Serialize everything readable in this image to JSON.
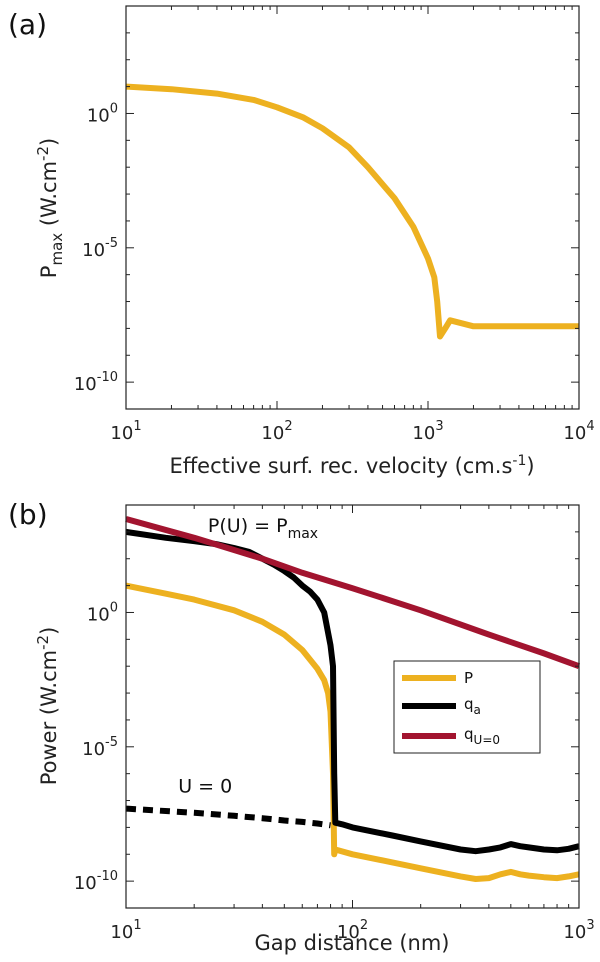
{
  "chart_data": [
    {
      "type": "line",
      "panel_label": "(a)",
      "xlabel": "Effective surf. rec. velocity (cm.s",
      "xlabel_sup": "-1",
      "xlabel_end": ")",
      "ylabel_main": "P",
      "ylabel_sub": "max",
      "ylabel_rest": " (W.cm",
      "ylabel_sup": "-2",
      "ylabel_end": ")",
      "xscale": "log",
      "yscale": "log",
      "xlim": [
        10,
        10000
      ],
      "ylim": [
        1e-11,
        10000.0
      ],
      "xticks": [
        {
          "value": 10,
          "base": "10",
          "exp": "1"
        },
        {
          "value": 100,
          "base": "10",
          "exp": "2"
        },
        {
          "value": 1000,
          "base": "10",
          "exp": "3"
        },
        {
          "value": 10000,
          "base": "10",
          "exp": "4"
        }
      ],
      "yticks": [
        {
          "value": 1,
          "base": "10",
          "exp": "0"
        },
        {
          "value": 1e-05,
          "base": "10",
          "exp": "-5"
        },
        {
          "value": 1e-10,
          "base": "10",
          "exp": "-10"
        }
      ],
      "grid": false,
      "series": [
        {
          "color": "#EDB120",
          "style": "solid",
          "x": [
            10,
            20,
            40,
            70,
            100,
            150,
            200,
            300,
            400,
            600,
            800,
            1000,
            1100,
            1150,
            1200,
            1300,
            1400,
            2000,
            5000,
            10000
          ],
          "y": [
            10,
            8,
            5.5,
            3.2,
            1.7,
            0.7,
            0.28,
            0.055,
            0.01,
            0.0007,
            6e-05,
            4e-06,
            8e-07,
            1e-07,
            5e-09,
            1e-08,
            2e-08,
            1.2e-08,
            1.2e-08,
            1.2e-08
          ]
        }
      ]
    },
    {
      "type": "line",
      "panel_label": "(b)",
      "xlabel": "Gap distance (nm)",
      "ylabel_main": "Power (W.cm",
      "ylabel_sup": "-2",
      "ylabel_end": ")",
      "xscale": "log",
      "yscale": "log",
      "xlim": [
        10,
        1000
      ],
      "ylim": [
        1e-11,
        10000.0
      ],
      "xticks": [
        {
          "value": 10,
          "base": "10",
          "exp": "1"
        },
        {
          "value": 100,
          "base": "10",
          "exp": "2"
        },
        {
          "value": 1000,
          "base": "10",
          "exp": "3"
        }
      ],
      "yticks": [
        {
          "value": 1,
          "base": "10",
          "exp": "0"
        },
        {
          "value": 1e-05,
          "base": "10",
          "exp": "-5"
        },
        {
          "value": 1e-10,
          "base": "10",
          "exp": "-10"
        }
      ],
      "grid": false,
      "legend": {
        "position": "right",
        "entries": [
          {
            "main": "P",
            "sub": ""
          },
          {
            "main": "q",
            "sub": "a"
          },
          {
            "main": "q",
            "sub": "U=0"
          }
        ]
      },
      "annotations": [
        {
          "text": "P(U) = P",
          "sub": "max",
          "x": 23,
          "y": 1000
        },
        {
          "text": "U = 0",
          "x": 17,
          "y": 2e-07
        }
      ],
      "series": [
        {
          "name": "P",
          "color": "#EDB120",
          "style": "solid",
          "x": [
            10,
            15,
            20,
            30,
            40,
            50,
            60,
            70,
            75,
            78,
            80,
            82,
            83,
            84,
            100,
            150,
            200,
            300,
            350,
            400,
            450,
            500,
            550,
            600,
            700,
            800,
            900,
            1000
          ],
          "y": [
            10,
            5,
            3,
            1.2,
            0.45,
            0.15,
            0.04,
            0.008,
            0.003,
            0.001,
            0.0002,
            1e-06,
            1e-09,
            1.5e-09,
            1e-09,
            5e-10,
            3e-10,
            1.5e-10,
            1.2e-10,
            1.3e-10,
            1.8e-10,
            2.2e-10,
            1.8e-10,
            1.6e-10,
            1.4e-10,
            1.3e-10,
            1.5e-10,
            1.8e-10
          ]
        },
        {
          "name": "q_a",
          "color": "#000000",
          "style": "solid",
          "x": [
            10,
            15,
            20,
            25,
            30,
            35,
            40,
            45,
            50,
            55,
            60,
            65,
            70,
            75,
            80,
            82,
            83,
            84,
            90,
            100,
            150,
            200,
            300,
            350,
            400,
            450,
            500,
            550,
            600,
            700,
            800,
            900,
            1000
          ],
          "y": [
            1000,
            600,
            450,
            350,
            250,
            180,
            100,
            60,
            35,
            20,
            10,
            6,
            3,
            1,
            0.06,
            0.01,
            1e-06,
            1.5e-08,
            1.3e-08,
            1e-08,
            5e-09,
            3e-09,
            1.5e-09,
            1.3e-09,
            1.5e-09,
            1.8e-09,
            2.4e-09,
            2e-09,
            1.8e-09,
            1.5e-09,
            1.4e-09,
            1.6e-09,
            2e-09
          ]
        },
        {
          "name": "q_U=0",
          "color": "#A2142F",
          "style": "solid",
          "x": [
            10,
            20,
            40,
            60,
            100,
            200,
            400,
            700,
            1000
          ],
          "y": [
            3000,
            600,
            100,
            30,
            8,
            1.2,
            0.15,
            0.03,
            0.01
          ]
        },
        {
          "name": "U=0 branch",
          "color": "#000000",
          "style": "dashed",
          "x": [
            10,
            20,
            30,
            40,
            50,
            60,
            70,
            80
          ],
          "y": [
            5e-08,
            3.5e-08,
            2.7e-08,
            2.2e-08,
            1.8e-08,
            1.6e-08,
            1.4e-08,
            1.2e-08
          ]
        }
      ]
    }
  ]
}
